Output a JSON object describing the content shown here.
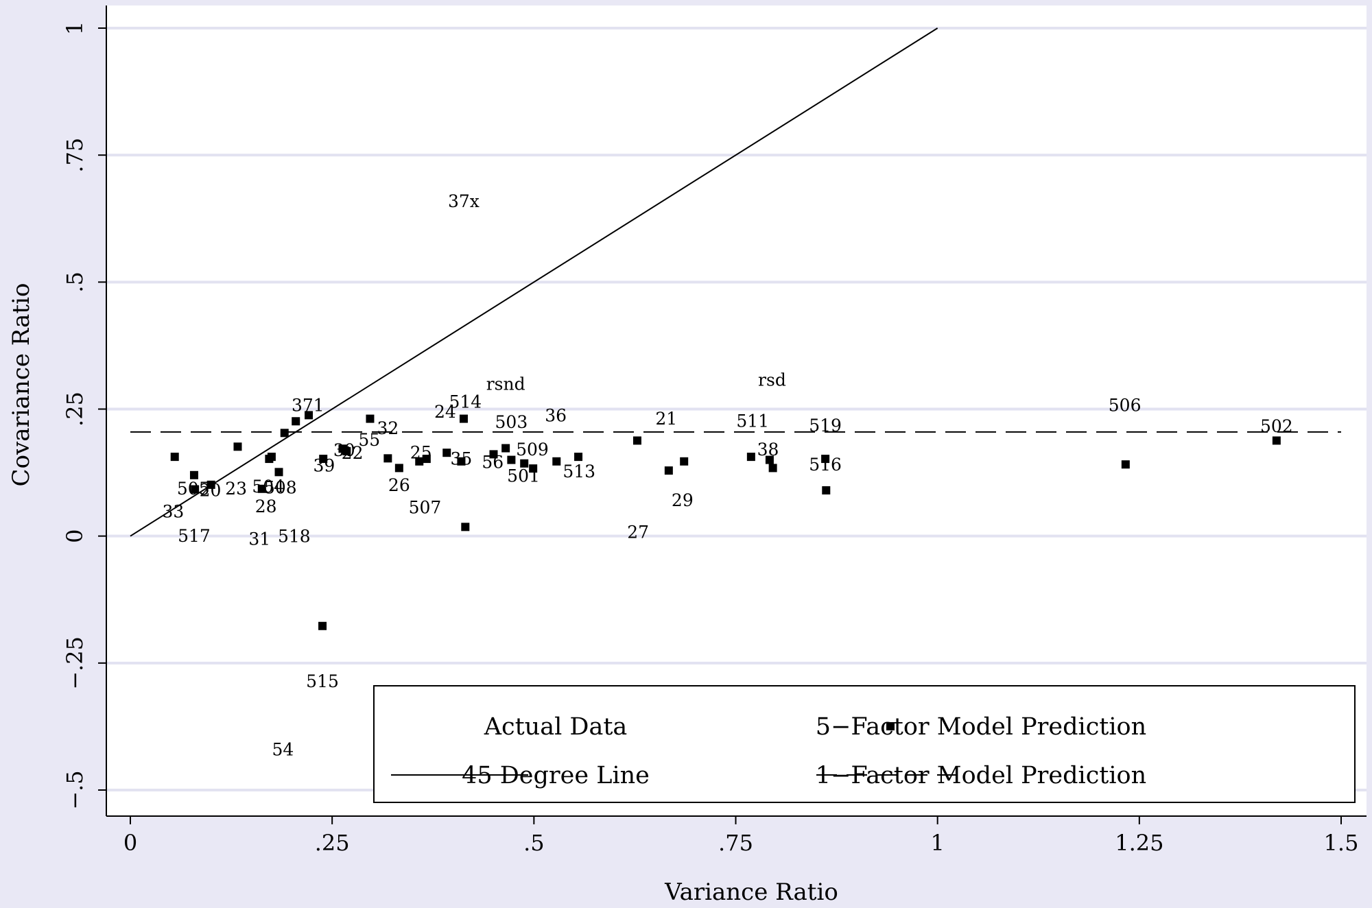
{
  "chart_data": {
    "type": "scatter",
    "title": "",
    "xlabel": "Variance Ratio",
    "ylabel": "Covariance Ratio",
    "xlim": [
      0,
      1.5
    ],
    "ylim": [
      -0.5,
      1
    ],
    "x_ticks": [
      {
        "value": 0,
        "label": "0"
      },
      {
        "value": 0.25,
        "label": ".25"
      },
      {
        "value": 0.5,
        "label": ".5"
      },
      {
        "value": 0.75,
        "label": ".75"
      },
      {
        "value": 1,
        "label": "1"
      },
      {
        "value": 1.25,
        "label": "1.25"
      },
      {
        "value": 1.5,
        "label": "1.5"
      }
    ],
    "y_ticks": [
      {
        "value": -0.5,
        "label": "-.5"
      },
      {
        "value": -0.25,
        "label": "-.25"
      },
      {
        "value": 0,
        "label": "0"
      },
      {
        "value": 0.25,
        "label": ".25"
      },
      {
        "value": 0.5,
        "label": ".5"
      },
      {
        "value": 0.75,
        "label": ".75"
      },
      {
        "value": 1,
        "label": "1"
      }
    ],
    "grid": "horizontal",
    "legend": {
      "placement": "bottom-right",
      "entries": [
        {
          "label": "Actual Data",
          "symbol": "text-label"
        },
        {
          "label": "5-Factor Model Prediction",
          "symbol": "square-marker"
        },
        {
          "label": "45 Degree Line",
          "symbol": "solid-line"
        },
        {
          "label": "1-Factor Model Prediction",
          "symbol": "dashed-line"
        }
      ]
    },
    "series": [
      {
        "name": "Actual Data",
        "marker": "text-label",
        "points": [
          {
            "label": "37x",
            "x": 0.413,
            "y": 0.66
          },
          {
            "label": "rsnd",
            "x": 0.465,
            "y": 0.3
          },
          {
            "label": "rsd",
            "x": 0.795,
            "y": 0.308
          },
          {
            "label": "371",
            "x": 0.22,
            "y": 0.258
          },
          {
            "label": "514",
            "x": 0.415,
            "y": 0.265
          },
          {
            "label": "24",
            "x": 0.39,
            "y": 0.245
          },
          {
            "label": "36",
            "x": 0.527,
            "y": 0.238
          },
          {
            "label": "21",
            "x": 0.664,
            "y": 0.232
          },
          {
            "label": "511",
            "x": 0.771,
            "y": 0.227
          },
          {
            "label": "503",
            "x": 0.472,
            "y": 0.225
          },
          {
            "label": "519",
            "x": 0.861,
            "y": 0.218
          },
          {
            "label": "32",
            "x": 0.319,
            "y": 0.213
          },
          {
            "label": "55",
            "x": 0.296,
            "y": 0.19
          },
          {
            "label": "38",
            "x": 0.79,
            "y": 0.171
          },
          {
            "label": "509",
            "x": 0.498,
            "y": 0.171
          },
          {
            "label": "30",
            "x": 0.265,
            "y": 0.17
          },
          {
            "label": "22",
            "x": 0.275,
            "y": 0.164
          },
          {
            "label": "25",
            "x": 0.36,
            "y": 0.165
          },
          {
            "label": "35",
            "x": 0.41,
            "y": 0.153
          },
          {
            "label": "56",
            "x": 0.449,
            "y": 0.146
          },
          {
            "label": "516",
            "x": 0.861,
            "y": 0.141
          },
          {
            "label": "39",
            "x": 0.24,
            "y": 0.139
          },
          {
            "label": "513",
            "x": 0.556,
            "y": 0.128
          },
          {
            "label": "501",
            "x": 0.487,
            "y": 0.119
          },
          {
            "label": "26",
            "x": 0.333,
            "y": 0.101
          },
          {
            "label": "504",
            "x": 0.171,
            "y": 0.098
          },
          {
            "label": "508",
            "x": 0.186,
            "y": 0.096
          },
          {
            "label": "505",
            "x": 0.078,
            "y": 0.094
          },
          {
            "label": "20",
            "x": 0.099,
            "y": 0.091
          },
          {
            "label": "23",
            "x": 0.131,
            "y": 0.094
          },
          {
            "label": "29",
            "x": 0.684,
            "y": 0.071
          },
          {
            "label": "28",
            "x": 0.168,
            "y": 0.059
          },
          {
            "label": "507",
            "x": 0.365,
            "y": 0.057
          },
          {
            "label": "33",
            "x": 0.053,
            "y": 0.049
          },
          {
            "label": "27",
            "x": 0.629,
            "y": 0.008
          },
          {
            "label": "517",
            "x": 0.079,
            "y": 0.001
          },
          {
            "label": "518",
            "x": 0.203,
            "y": 0.0
          },
          {
            "label": "31",
            "x": 0.16,
            "y": -0.005
          },
          {
            "label": "515",
            "x": 0.238,
            "y": -0.285
          },
          {
            "label": "54",
            "x": 0.189,
            "y": -0.42
          },
          {
            "label": "506",
            "x": 1.232,
            "y": 0.258
          },
          {
            "label": "502",
            "x": 1.42,
            "y": 0.217
          }
        ]
      },
      {
        "name": "5-Factor Model Prediction",
        "marker": "square",
        "points": [
          {
            "x": 0.055,
            "y": 0.156
          },
          {
            "x": 0.079,
            "y": 0.12
          },
          {
            "x": 0.08,
            "y": 0.092
          },
          {
            "x": 0.1,
            "y": 0.101
          },
          {
            "x": 0.133,
            "y": 0.176
          },
          {
            "x": 0.163,
            "y": 0.093
          },
          {
            "x": 0.172,
            "y": 0.152
          },
          {
            "x": 0.175,
            "y": 0.156
          },
          {
            "x": 0.184,
            "y": 0.126
          },
          {
            "x": 0.191,
            "y": 0.203
          },
          {
            "x": 0.205,
            "y": 0.226
          },
          {
            "x": 0.221,
            "y": 0.238
          },
          {
            "x": 0.239,
            "y": 0.152
          },
          {
            "x": 0.263,
            "y": 0.172
          },
          {
            "x": 0.268,
            "y": 0.167
          },
          {
            "x": 0.297,
            "y": 0.231
          },
          {
            "x": 0.319,
            "y": 0.153
          },
          {
            "x": 0.333,
            "y": 0.134
          },
          {
            "x": 0.358,
            "y": 0.147
          },
          {
            "x": 0.367,
            "y": 0.152
          },
          {
            "x": 0.392,
            "y": 0.164
          },
          {
            "x": 0.41,
            "y": 0.147
          },
          {
            "x": 0.413,
            "y": 0.231
          },
          {
            "x": 0.415,
            "y": 0.018
          },
          {
            "x": 0.45,
            "y": 0.161
          },
          {
            "x": 0.465,
            "y": 0.173
          },
          {
            "x": 0.472,
            "y": 0.15
          },
          {
            "x": 0.488,
            "y": 0.143
          },
          {
            "x": 0.499,
            "y": 0.133
          },
          {
            "x": 0.528,
            "y": 0.147
          },
          {
            "x": 0.555,
            "y": 0.156
          },
          {
            "x": 0.628,
            "y": 0.188
          },
          {
            "x": 0.667,
            "y": 0.129
          },
          {
            "x": 0.686,
            "y": 0.147
          },
          {
            "x": 0.769,
            "y": 0.156
          },
          {
            "x": 0.792,
            "y": 0.15
          },
          {
            "x": 0.796,
            "y": 0.134
          },
          {
            "x": 0.861,
            "y": 0.152
          },
          {
            "x": 0.862,
            "y": 0.09
          },
          {
            "x": 1.233,
            "y": 0.141
          },
          {
            "x": 1.42,
            "y": 0.188
          },
          {
            "x": 0.238,
            "y": -0.177
          }
        ]
      },
      {
        "name": "45 Degree Line",
        "type": "line",
        "style": "solid",
        "points": [
          {
            "x": 0,
            "y": 0
          },
          {
            "x": 1,
            "y": 1
          }
        ]
      },
      {
        "name": "1-Factor Model Prediction",
        "type": "line",
        "style": "dashed",
        "points": [
          {
            "x": 0,
            "y": 0.205
          },
          {
            "x": 1.5,
            "y": 0.205
          }
        ]
      }
    ]
  }
}
